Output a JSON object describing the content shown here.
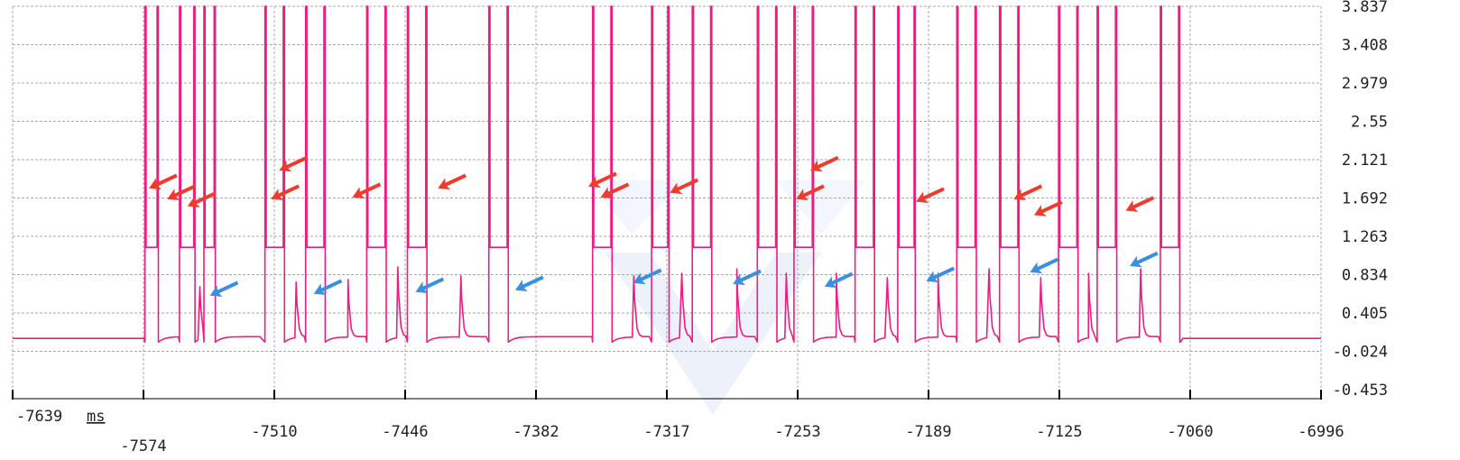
{
  "colors": {
    "signal": "#ee1c80",
    "grid": "#a8a8a8",
    "axis": "#000000",
    "red_arrow": "#ef3b2c",
    "blue_arrow": "#3a8fe0",
    "watermark": "#dde6f6"
  },
  "chart_data": {
    "type": "line",
    "title": "",
    "xlabel": "",
    "ylabel": "",
    "x_unit": "ms",
    "xlim": [
      -7639,
      -6996
    ],
    "ylim": [
      -0.453,
      3.837
    ],
    "x_tick_labels": [
      "-7639",
      "-7574",
      "-7510",
      "-7446",
      "-7382",
      "-7317",
      "-7253",
      "-7189",
      "-7125",
      "-7060",
      "-6996"
    ],
    "y_tick_labels": [
      "3.837",
      "3.408",
      "2.979",
      "2.55",
      "2.121",
      "1.692",
      "1.263",
      "0.834",
      "0.405",
      "-0.024",
      "-0.453"
    ],
    "grid": true,
    "legend": "none",
    "series": [
      {
        "baseline": 0.12,
        "low_level": 0.08,
        "high_level": 3.837,
        "mid_level": 1.14,
        "pulses": [
          {
            "start": -7574,
            "end": -7568,
            "spike": null
          },
          {
            "start": -7557,
            "end": -7550,
            "spike": null
          },
          {
            "start": -7545,
            "end": -7540,
            "spike": 0.7
          },
          {
            "start": -7515,
            "end": -7506,
            "spike": null
          },
          {
            "start": -7495,
            "end": -7486,
            "spike": 0.75
          },
          {
            "start": -7465,
            "end": -7456,
            "spike": 0.78
          },
          {
            "start": -7445,
            "end": -7436,
            "spike": 0.92
          },
          {
            "start": -7405,
            "end": -7396,
            "spike": 0.82
          },
          {
            "start": -7354,
            "end": -7345,
            "spike": null
          },
          {
            "start": -7325,
            "end": -7317,
            "spike": 0.82
          },
          {
            "start": -7305,
            "end": -7296,
            "spike": 0.85
          },
          {
            "start": -7273,
            "end": -7264,
            "spike": 0.9
          },
          {
            "start": -7255,
            "end": -7246,
            "spike": 0.85
          },
          {
            "start": -7225,
            "end": -7216,
            "spike": 0.85
          },
          {
            "start": -7204,
            "end": -7196,
            "spike": 0.8
          },
          {
            "start": -7175,
            "end": -7166,
            "spike": 0.85
          },
          {
            "start": -7154,
            "end": -7145,
            "spike": 0.9
          },
          {
            "start": -7125,
            "end": -7116,
            "spike": 0.8
          },
          {
            "start": -7106,
            "end": -7097,
            "spike": 0.85
          },
          {
            "start": -7075,
            "end": -7066,
            "spike": 0.9
          }
        ]
      }
    ],
    "annotations": {
      "red_arrows": [
        {
          "x": -7572,
          "y": 1.8
        },
        {
          "x": -7563,
          "y": 1.68
        },
        {
          "x": -7553,
          "y": 1.6
        },
        {
          "x": -7512,
          "y": 1.68
        },
        {
          "x": -7508,
          "y": 2.0
        },
        {
          "x": -7472,
          "y": 1.7
        },
        {
          "x": -7430,
          "y": 1.8
        },
        {
          "x": -7356,
          "y": 1.82
        },
        {
          "x": -7350,
          "y": 1.7
        },
        {
          "x": -7316,
          "y": 1.75
        },
        {
          "x": -7254,
          "y": 1.68
        },
        {
          "x": -7247,
          "y": 2.0
        },
        {
          "x": -7195,
          "y": 1.65
        },
        {
          "x": -7147,
          "y": 1.68
        },
        {
          "x": -7137,
          "y": 1.5
        },
        {
          "x": -7092,
          "y": 1.55
        }
      ],
      "blue_arrows": [
        {
          "x": -7542,
          "y": 0.6
        },
        {
          "x": -7491,
          "y": 0.62
        },
        {
          "x": -7441,
          "y": 0.64
        },
        {
          "x": -7392,
          "y": 0.66
        },
        {
          "x": -7334,
          "y": 0.74
        },
        {
          "x": -7285,
          "y": 0.73
        },
        {
          "x": -7240,
          "y": 0.7
        },
        {
          "x": -7190,
          "y": 0.76
        },
        {
          "x": -7139,
          "y": 0.86
        },
        {
          "x": -7090,
          "y": 0.93
        }
      ]
    }
  }
}
